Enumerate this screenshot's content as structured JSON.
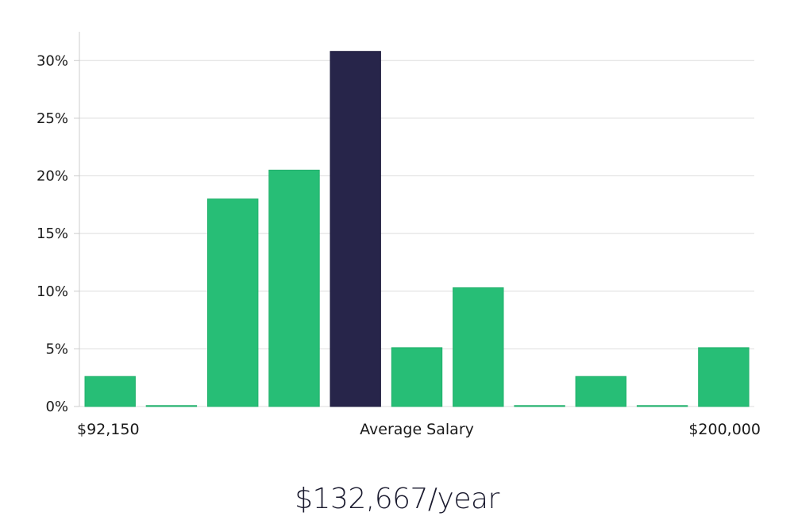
{
  "chart_data": {
    "type": "bar",
    "title": "",
    "xlabel": "Average Salary",
    "ylabel": "",
    "x_min_label": "$92,150",
    "x_max_label": "$200,000",
    "ylim": [
      0,
      32.5
    ],
    "yticks": [
      0,
      5,
      10,
      15,
      20,
      25,
      30
    ],
    "ytick_suffix": "%",
    "values": [
      2.6,
      0,
      18.0,
      20.5,
      30.8,
      5.1,
      10.3,
      0,
      2.6,
      0,
      5.1
    ],
    "highlight_index": 4,
    "colors": {
      "bar": "#27be76",
      "highlight": "#27254a",
      "grid": "#dddddd",
      "axis": "#cccccc"
    }
  },
  "summary": {
    "salary_text": "$132,667/year"
  }
}
